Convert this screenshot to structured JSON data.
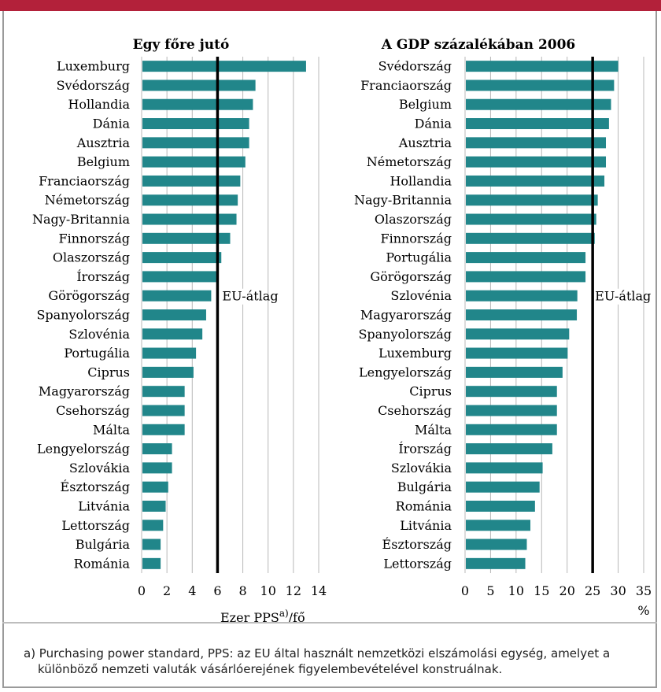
{
  "chart_data": [
    {
      "type": "bar",
      "orientation": "horizontal",
      "title": "Egy főre jutó",
      "xlabel": "Ezer PPS",
      "xlabel_sup": "a)",
      "xlabel_suffix": "/fő",
      "xlim": [
        0,
        14
      ],
      "xticks": [
        "0",
        "2",
        "4",
        "6",
        "8",
        "10",
        "12",
        "14"
      ],
      "grid": true,
      "reference_line": {
        "value": 6,
        "label": "EU-átlag"
      },
      "categories": [
        "Luxemburg",
        "Svédország",
        "Hollandia",
        "Dánia",
        "Ausztria",
        "Belgium",
        "Franciaország",
        "Németország",
        "Nagy-Britannia",
        "Finnország",
        "Olaszország",
        "Írország",
        "Görögország",
        "Spanyolország",
        "Szlovénia",
        "Portugália",
        "Ciprus",
        "Magyarország",
        "Csehország",
        "Málta",
        "Lengyelország",
        "Szlovákia",
        "Észtország",
        "Litvánia",
        "Lettország",
        "Bulgária",
        "Románia"
      ],
      "values": [
        13.0,
        9.0,
        8.8,
        8.5,
        8.5,
        8.2,
        7.8,
        7.6,
        7.5,
        7.0,
        6.3,
        5.9,
        5.5,
        5.1,
        4.8,
        4.3,
        4.1,
        3.4,
        3.4,
        3.4,
        2.4,
        2.4,
        2.1,
        1.9,
        1.7,
        1.5,
        1.5
      ],
      "bar_color": "#21868a"
    },
    {
      "type": "bar",
      "orientation": "horizontal",
      "title": "A GDP százalékában 2006",
      "xlabel": "%",
      "xlim": [
        0,
        35
      ],
      "xticks": [
        "0",
        "5",
        "10",
        "15",
        "20",
        "25",
        "30",
        "35"
      ],
      "grid": true,
      "reference_line": {
        "value": 25,
        "label": "EU-átlag"
      },
      "categories": [
        "Svédország",
        "Franciaország",
        "Belgium",
        "Dánia",
        "Ausztria",
        "Németország",
        "Hollandia",
        "Nagy-Britannia",
        "Olaszország",
        "Finnország",
        "Portugália",
        "Görögország",
        "Szlovénia",
        "Magyarország",
        "Spanyolország",
        "Luxemburg",
        "Lengyelország",
        "Ciprus",
        "Csehország",
        "Málta",
        "Írország",
        "Szlovákia",
        "Bulgária",
        "Románia",
        "Litvánia",
        "Észtország",
        "Lettország"
      ],
      "values": [
        30.0,
        29.2,
        28.6,
        28.2,
        27.6,
        27.6,
        27.3,
        26.0,
        25.7,
        25.4,
        23.6,
        23.6,
        22.0,
        21.9,
        20.4,
        20.1,
        19.1,
        18.0,
        18.0,
        18.0,
        17.1,
        15.2,
        14.6,
        13.7,
        12.8,
        12.1,
        11.8
      ],
      "bar_color": "#21868a"
    }
  ],
  "footnote": {
    "line1": "a) Purchasing power standard, PPS: az EU által használt nemzetközi elszámolási egység, amelyet a",
    "line2": "különböző nemzeti valuták vásárlóerejének figyelembevételével konstruálnak."
  },
  "colors": {
    "accent_bar": "#b3213a",
    "bars": "#21868a",
    "grid": "#b8b8b8",
    "frame": "#9a9a9a"
  }
}
